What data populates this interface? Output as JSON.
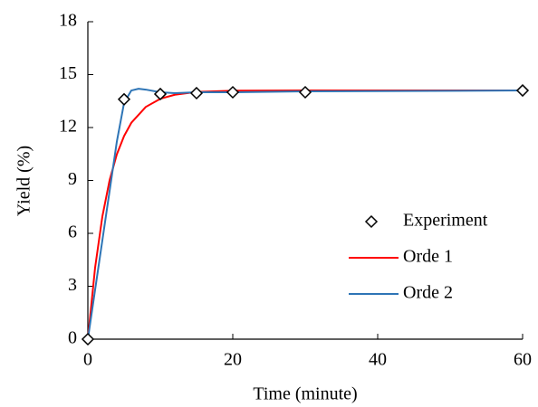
{
  "chart_data": {
    "type": "line",
    "x_label": "Time (minute)",
    "y_label": "Yield (%)",
    "xlim": [
      0,
      60
    ],
    "xticks": [
      0,
      20,
      40,
      60
    ],
    "ylim": [
      0,
      18
    ],
    "yticks": [
      0,
      3,
      6,
      9,
      12,
      15,
      18
    ],
    "legend": "center right",
    "series": [
      {
        "name": "Experiment",
        "style": "marker",
        "color": "#000000",
        "x": [
          0,
          5,
          10,
          15,
          20,
          30,
          60
        ],
        "values": [
          0,
          13.6,
          13.9,
          13.95,
          14.0,
          14.0,
          14.1
        ]
      },
      {
        "name": "Orde 1",
        "style": "line",
        "color": "#ff0000",
        "x": [
          0,
          1,
          2,
          3,
          4,
          5,
          6,
          8,
          10,
          12,
          15,
          20,
          30,
          60
        ],
        "values": [
          0,
          4.06,
          6.95,
          9.01,
          10.48,
          11.52,
          12.27,
          13.17,
          13.63,
          13.86,
          14.02,
          14.09,
          14.1,
          14.1
        ]
      },
      {
        "name": "Orde 2",
        "style": "line",
        "color": "#2e75b6",
        "x": [
          0,
          1,
          2,
          3,
          4,
          5,
          6,
          7,
          8,
          10,
          12,
          15,
          20,
          30,
          60
        ],
        "values": [
          0,
          2.8,
          5.6,
          8.4,
          11.2,
          13.4,
          14.1,
          14.2,
          14.15,
          14.0,
          13.95,
          14.0,
          14.0,
          14.05,
          14.1
        ]
      }
    ]
  }
}
